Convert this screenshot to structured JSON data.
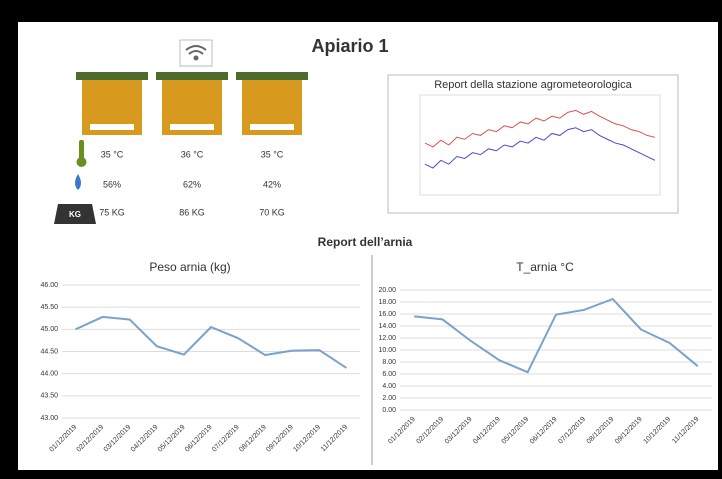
{
  "title": "Apiario 1",
  "hives": {
    "rows": [
      {
        "cells": [
          "35 °C",
          "36 °C",
          "35 °C"
        ]
      },
      {
        "cells": [
          "56%",
          "62%",
          "42%"
        ]
      },
      {
        "cells": [
          "75 KG",
          "86 KG",
          "70 KG"
        ]
      }
    ],
    "weight_icon_label": "KG"
  },
  "weather_report": {
    "title": "Report della stazione agrometeorologica",
    "ylim": [
      0,
      100
    ],
    "series": [
      {
        "color": "#e05050",
        "values": [
          52,
          48,
          55,
          50,
          58,
          56,
          62,
          60,
          66,
          64,
          70,
          68,
          74,
          72,
          78,
          75,
          80,
          78,
          84,
          86,
          82,
          85,
          80,
          76,
          72,
          70,
          66,
          64,
          60,
          58
        ]
      },
      {
        "color": "#4a4ad0",
        "values": [
          30,
          26,
          34,
          30,
          38,
          36,
          42,
          40,
          46,
          44,
          50,
          48,
          54,
          52,
          58,
          55,
          62,
          60,
          66,
          68,
          64,
          66,
          60,
          56,
          52,
          50,
          46,
          42,
          38,
          34
        ]
      }
    ]
  },
  "section_title": "Report dell’arnia",
  "charts": [
    {
      "type": "line",
      "title": "Peso arnia (kg)",
      "color": "#7aa3cc",
      "categories": [
        "01/12/2019",
        "02/12/2019",
        "03/12/2019",
        "04/12/2019",
        "05/12/2019",
        "06/12/2019",
        "07/12/2019",
        "08/12/2019",
        "09/12/2019",
        "10/12/2019",
        "11/12/2019"
      ],
      "values": [
        45.0,
        45.28,
        45.22,
        44.62,
        44.43,
        45.05,
        44.8,
        44.42,
        44.52,
        44.53,
        44.13
      ],
      "ylim": [
        43,
        46
      ],
      "yticks": [
        {
          "value": 43,
          "label": "43.00"
        },
        {
          "value": 43.5,
          "label": "43.50"
        },
        {
          "value": 44,
          "label": "44.00"
        },
        {
          "value": 44.5,
          "label": "44.50"
        },
        {
          "value": 45,
          "label": "45.00"
        },
        {
          "value": 45.5,
          "label": "45.50"
        },
        {
          "value": 46,
          "label": "46.00"
        }
      ],
      "grid": true
    },
    {
      "type": "line",
      "title": "T_arnia °C",
      "color": "#7aa3cc",
      "categories": [
        "01/12/2019",
        "02/12/2019",
        "03/12/2019",
        "04/12/2019",
        "05/12/2019",
        "06/12/2019",
        "07/12/2019",
        "08/12/2019",
        "09/12/2019",
        "10/12/2019",
        "11/12/2019"
      ],
      "values": [
        15.6,
        15.1,
        11.5,
        8.3,
        6.3,
        15.9,
        16.7,
        18.5,
        13.4,
        11.2,
        7.3
      ],
      "ylim": [
        0,
        20
      ],
      "yticks": [
        {
          "value": 0,
          "label": "0.00"
        },
        {
          "value": 2,
          "label": "2.00"
        },
        {
          "value": 4,
          "label": "4.00"
        },
        {
          "value": 6,
          "label": "6.00"
        },
        {
          "value": 8,
          "label": "8.00"
        },
        {
          "value": 10,
          "label": "10.00"
        },
        {
          "value": 12,
          "label": "12.00"
        },
        {
          "value": 14,
          "label": "14.00"
        },
        {
          "value": 16,
          "label": "16.00"
        },
        {
          "value": 18,
          "label": "18.00"
        },
        {
          "value": 20,
          "label": "20.00"
        }
      ],
      "grid": true
    }
  ]
}
